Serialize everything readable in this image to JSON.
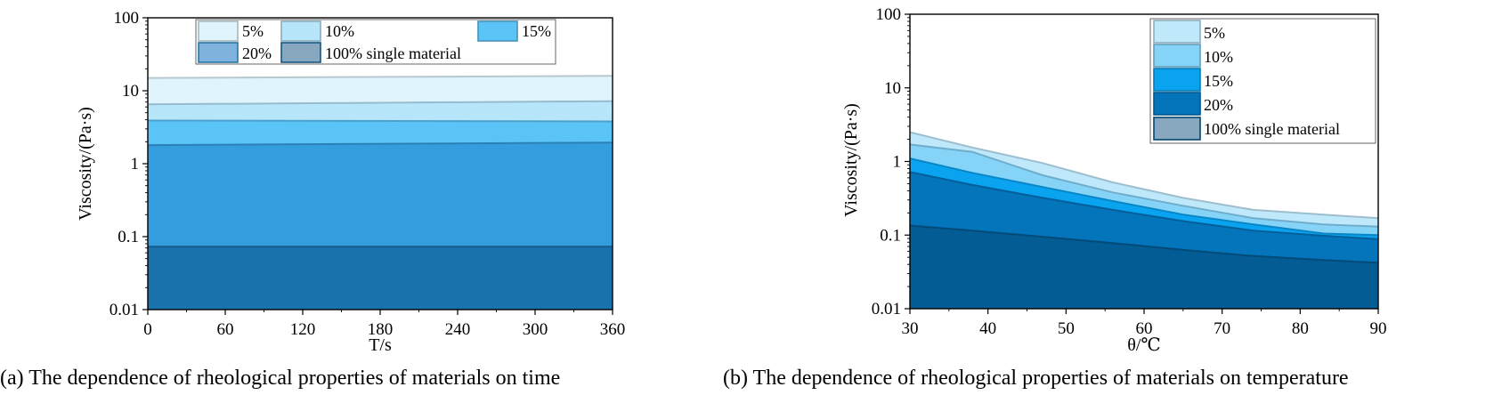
{
  "chart_data": [
    {
      "type": "area",
      "caption": "(a) The dependence of rheological properties of materials on time",
      "xlabel": "T/s",
      "ylabel": "Viscosity/(Pa·s)",
      "y_scale": "log",
      "xlim": [
        0,
        360
      ],
      "ylim": [
        0.01,
        100
      ],
      "x_ticks": [
        "0",
        "60",
        "120",
        "180",
        "240",
        "300",
        "360"
      ],
      "y_ticks": [
        "0.01",
        "0.1",
        "1",
        "10",
        "100"
      ],
      "legend_position": "top",
      "x": [
        0,
        360
      ],
      "series": [
        {
          "name": "5%",
          "color": "#dff4fd",
          "values": [
            15.0,
            16.0
          ]
        },
        {
          "name": "10%",
          "color": "#b7e5fa",
          "values": [
            6.5,
            7.2
          ]
        },
        {
          "name": "15%",
          "color": "#5bc4f7",
          "values": [
            3.9,
            3.8
          ]
        },
        {
          "name": "20%",
          "color": "#349ddd",
          "values": [
            1.8,
            1.95
          ]
        },
        {
          "name": "100% single material",
          "color": "#1a72ad",
          "values": [
            0.073,
            0.073
          ]
        }
      ]
    },
    {
      "type": "area",
      "caption": "(b) The dependence of rheological properties of materials on temperature",
      "xlabel": "θ/℃",
      "ylabel": "Viscosity/(Pa·s)",
      "y_scale": "log",
      "xlim": [
        30,
        90
      ],
      "ylim": [
        0.01,
        100
      ],
      "x_ticks": [
        "30",
        "40",
        "50",
        "60",
        "70",
        "80",
        "90"
      ],
      "y_ticks": [
        "0.01",
        "0.1",
        "1",
        "10",
        "100"
      ],
      "legend_position": "top-right",
      "x": [
        30,
        38,
        47,
        56,
        65,
        74,
        83,
        90
      ],
      "series": [
        {
          "name": "5%",
          "color": "#bfe8fb",
          "values": [
            2.5,
            1.55,
            0.95,
            0.52,
            0.32,
            0.22,
            0.19,
            0.17
          ]
        },
        {
          "name": "10%",
          "color": "#86d3f8",
          "values": [
            1.7,
            1.35,
            0.65,
            0.38,
            0.25,
            0.17,
            0.14,
            0.13
          ]
        },
        {
          "name": "15%",
          "color": "#0aa3f0",
          "values": [
            1.1,
            0.7,
            0.45,
            0.29,
            0.19,
            0.14,
            0.105,
            0.1
          ]
        },
        {
          "name": "20%",
          "color": "#0474bb",
          "values": [
            0.72,
            0.48,
            0.32,
            0.22,
            0.155,
            0.115,
            0.098,
            0.088
          ]
        },
        {
          "name": "100% single material",
          "color": "#035c94",
          "values": [
            0.135,
            0.115,
            0.095,
            0.078,
            0.063,
            0.052,
            0.046,
            0.042
          ]
        }
      ]
    }
  ]
}
